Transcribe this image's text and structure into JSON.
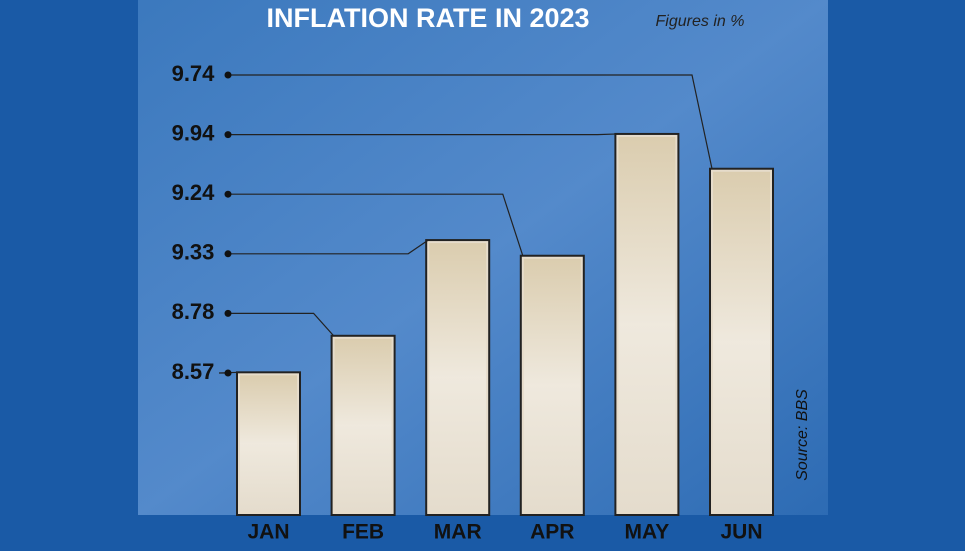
{
  "chart_data": {
    "type": "bar",
    "title": "INFLATION RATE IN 2023",
    "subtitle": "Figures in %",
    "source": "Source: BBS",
    "categories": [
      "JAN",
      "FEB",
      "MAR",
      "APR",
      "MAY",
      "JUN"
    ],
    "values": [
      8.57,
      8.78,
      9.33,
      9.24,
      9.94,
      9.74
    ],
    "ylim": [
      7.75,
      10.0
    ],
    "color": "#e6dccb"
  }
}
